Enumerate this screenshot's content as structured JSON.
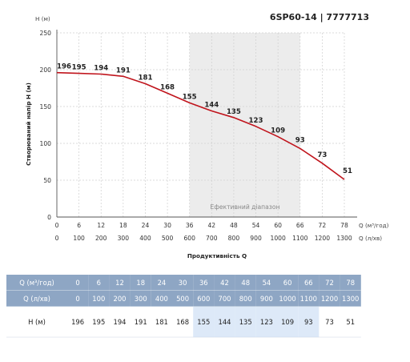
{
  "chart_data": {
    "type": "line",
    "title": "6SP60-14 | 7777713",
    "y_unit": "H (м)",
    "ylabel": "Створюваний напір H (м)",
    "xlabel": "Продуктивність Q",
    "x_unit_primary": "Q (м³/год)",
    "x_unit_secondary": "Q (л/хв)",
    "ylim": [
      0,
      250
    ],
    "yticks": [
      "0",
      "50",
      "100",
      "150",
      "200",
      "250"
    ],
    "x_m3h": [
      0,
      6,
      12,
      18,
      24,
      30,
      36,
      42,
      48,
      54,
      60,
      66,
      72,
      78
    ],
    "x_lmin": [
      0,
      100,
      200,
      300,
      400,
      500,
      600,
      700,
      800,
      900,
      1000,
      1100,
      1200,
      1300
    ],
    "series": [
      {
        "values": [
          196,
          195,
          194,
          191,
          181,
          168,
          155,
          144,
          135,
          123,
          109,
          93,
          73,
          51
        ]
      }
    ],
    "efficient_range": {
      "label": "Ефективний діапазон",
      "from": 36,
      "to": 66
    },
    "line_color": "#c0141c",
    "grid": true
  },
  "table": {
    "row_labels": [
      "Q (м³/год)",
      "Q (л/хв)",
      "H (м)"
    ],
    "header_color": "#8ea6c4",
    "highlight_color": "#dde9f8"
  }
}
